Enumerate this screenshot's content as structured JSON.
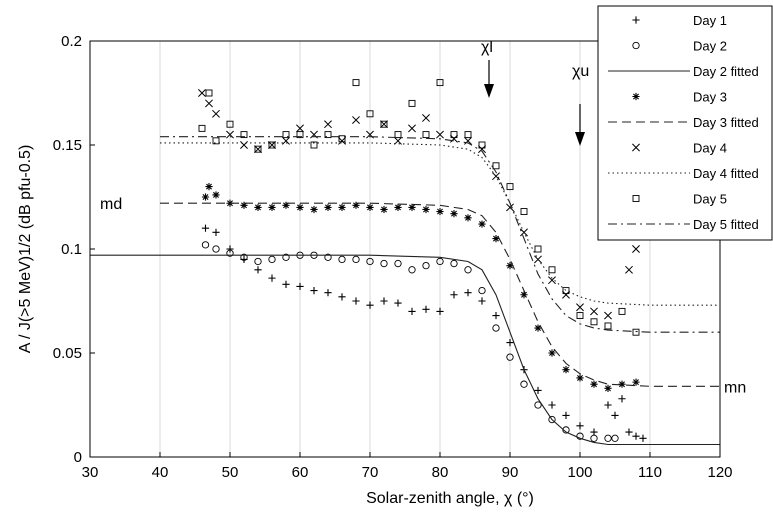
{
  "chart_data": {
    "type": "scatter",
    "xlabel": "Solar-zenith angle, χ (°)",
    "ylabel": "A / J(>5 MeV)1/2 (dB pfu-0.5)",
    "xlim": [
      30,
      120
    ],
    "ylim": [
      0,
      0.2
    ],
    "xticks": [
      "30",
      "40",
      "50",
      "60",
      "70",
      "80",
      "90",
      "100",
      "110",
      "120"
    ],
    "yticks": [
      "0",
      "0.05",
      "0.1",
      "0.15",
      "0.2"
    ],
    "grid": "vertical",
    "legend_position": "top-right",
    "annotations": [
      {
        "text": "χl",
        "x": 87,
        "y": 0.19
      },
      {
        "text": "χu",
        "x": 100,
        "y": 0.18
      },
      {
        "text": "md",
        "x": 40,
        "y": 0.122
      },
      {
        "text": "mn",
        "x": 120,
        "y": 0.034
      }
    ],
    "series": [
      {
        "name": "Day 1",
        "marker": "plus",
        "x": [
          46.5,
          48,
          50,
          52,
          54,
          56,
          58,
          60,
          62,
          64,
          66,
          68,
          70,
          72,
          74,
          76,
          78,
          80,
          82,
          84,
          86,
          88,
          90,
          92,
          94,
          96,
          98,
          100,
          102,
          104,
          105,
          106,
          107,
          108,
          109
        ],
        "y": [
          0.11,
          0.108,
          0.1,
          0.095,
          0.09,
          0.086,
          0.083,
          0.082,
          0.08,
          0.079,
          0.077,
          0.075,
          0.073,
          0.075,
          0.074,
          0.07,
          0.071,
          0.07,
          0.078,
          0.079,
          0.075,
          0.068,
          0.055,
          0.042,
          0.032,
          0.025,
          0.02,
          0.015,
          0.012,
          0.025,
          0.02,
          0.028,
          0.012,
          0.01,
          0.009
        ]
      },
      {
        "name": "Day 2",
        "marker": "circle",
        "x": [
          46.5,
          48,
          50,
          52,
          54,
          56,
          58,
          60,
          62,
          64,
          66,
          68,
          70,
          72,
          74,
          76,
          78,
          80,
          82,
          84,
          86,
          88,
          90,
          92,
          94,
          96,
          98,
          100,
          102,
          104,
          105
        ],
        "y": [
          0.102,
          0.1,
          0.098,
          0.096,
          0.094,
          0.095,
          0.096,
          0.097,
          0.097,
          0.096,
          0.095,
          0.095,
          0.094,
          0.093,
          0.093,
          0.09,
          0.092,
          0.094,
          0.093,
          0.09,
          0.08,
          0.062,
          0.048,
          0.035,
          0.025,
          0.018,
          0.013,
          0.01,
          0.009,
          0.009,
          0.009
        ]
      },
      {
        "name": "Day 2 fitted",
        "line": "solid",
        "x": [
          30,
          40,
          50,
          60,
          70,
          80,
          84,
          86,
          88,
          90,
          92,
          94,
          96,
          98,
          100,
          102,
          104,
          110,
          120
        ],
        "y": [
          0.097,
          0.097,
          0.097,
          0.097,
          0.097,
          0.096,
          0.094,
          0.09,
          0.078,
          0.06,
          0.042,
          0.028,
          0.018,
          0.012,
          0.009,
          0.007,
          0.006,
          0.006,
          0.006
        ]
      },
      {
        "name": "Day 3",
        "marker": "star",
        "x": [
          46.5,
          47,
          48,
          50,
          52,
          54,
          56,
          58,
          60,
          62,
          64,
          66,
          68,
          70,
          72,
          74,
          76,
          78,
          80,
          82,
          84,
          86,
          88,
          90,
          92,
          94,
          96,
          98,
          100,
          102,
          104,
          106,
          108
        ],
        "y": [
          0.125,
          0.13,
          0.126,
          0.122,
          0.121,
          0.12,
          0.12,
          0.121,
          0.12,
          0.119,
          0.12,
          0.12,
          0.121,
          0.12,
          0.119,
          0.12,
          0.12,
          0.119,
          0.118,
          0.117,
          0.115,
          0.112,
          0.105,
          0.092,
          0.078,
          0.062,
          0.05,
          0.042,
          0.038,
          0.035,
          0.033,
          0.035,
          0.036
        ]
      },
      {
        "name": "Day 3 fitted",
        "line": "dashed",
        "x": [
          40,
          50,
          60,
          70,
          80,
          84,
          86,
          88,
          90,
          92,
          94,
          96,
          98,
          100,
          102,
          104,
          110,
          120
        ],
        "y": [
          0.122,
          0.122,
          0.122,
          0.122,
          0.121,
          0.119,
          0.116,
          0.108,
          0.095,
          0.08,
          0.065,
          0.053,
          0.045,
          0.04,
          0.037,
          0.035,
          0.034,
          0.034
        ]
      },
      {
        "name": "Day 4",
        "marker": "cross",
        "x": [
          46,
          47,
          48,
          50,
          52,
          54,
          56,
          58,
          60,
          62,
          64,
          66,
          68,
          70,
          72,
          74,
          76,
          78,
          80,
          82,
          84,
          86,
          88,
          90,
          92,
          94,
          96,
          98,
          100,
          102,
          104,
          105,
          106,
          107,
          108
        ],
        "y": [
          0.175,
          0.17,
          0.165,
          0.155,
          0.15,
          0.148,
          0.15,
          0.152,
          0.158,
          0.155,
          0.16,
          0.152,
          0.162,
          0.155,
          0.16,
          0.152,
          0.158,
          0.163,
          0.155,
          0.153,
          0.152,
          0.148,
          0.135,
          0.12,
          0.108,
          0.095,
          0.085,
          0.078,
          0.072,
          0.07,
          0.068,
          0.11,
          0.14,
          0.09,
          0.1
        ]
      },
      {
        "name": "Day 4 fitted",
        "line": "dotted",
        "x": [
          40,
          50,
          60,
          70,
          80,
          84,
          86,
          88,
          90,
          92,
          94,
          96,
          98,
          100,
          102,
          104,
          110,
          120
        ],
        "y": [
          0.151,
          0.151,
          0.151,
          0.151,
          0.15,
          0.148,
          0.144,
          0.135,
          0.122,
          0.108,
          0.095,
          0.086,
          0.08,
          0.077,
          0.075,
          0.074,
          0.073,
          0.073
        ]
      },
      {
        "name": "Day 5",
        "marker": "square",
        "x": [
          46,
          47,
          48,
          50,
          52,
          54,
          56,
          58,
          60,
          62,
          64,
          66,
          68,
          70,
          72,
          74,
          76,
          78,
          80,
          82,
          84,
          86,
          88,
          90,
          92,
          94,
          96,
          98,
          100,
          102,
          104,
          106,
          108
        ],
        "y": [
          0.158,
          0.175,
          0.152,
          0.16,
          0.155,
          0.148,
          0.15,
          0.155,
          0.155,
          0.15,
          0.155,
          0.153,
          0.18,
          0.165,
          0.16,
          0.155,
          0.17,
          0.155,
          0.18,
          0.155,
          0.155,
          0.15,
          0.14,
          0.13,
          0.118,
          0.1,
          0.09,
          0.08,
          0.068,
          0.065,
          0.063,
          0.07,
          0.06
        ]
      },
      {
        "name": "Day 5 fitted",
        "line": "dashdot",
        "x": [
          40,
          50,
          60,
          70,
          80,
          84,
          86,
          88,
          90,
          92,
          94,
          96,
          98,
          100,
          102,
          104,
          110,
          120
        ],
        "y": [
          0.154,
          0.154,
          0.154,
          0.154,
          0.153,
          0.151,
          0.147,
          0.137,
          0.122,
          0.105,
          0.088,
          0.076,
          0.068,
          0.064,
          0.062,
          0.061,
          0.06,
          0.06
        ]
      }
    ]
  }
}
